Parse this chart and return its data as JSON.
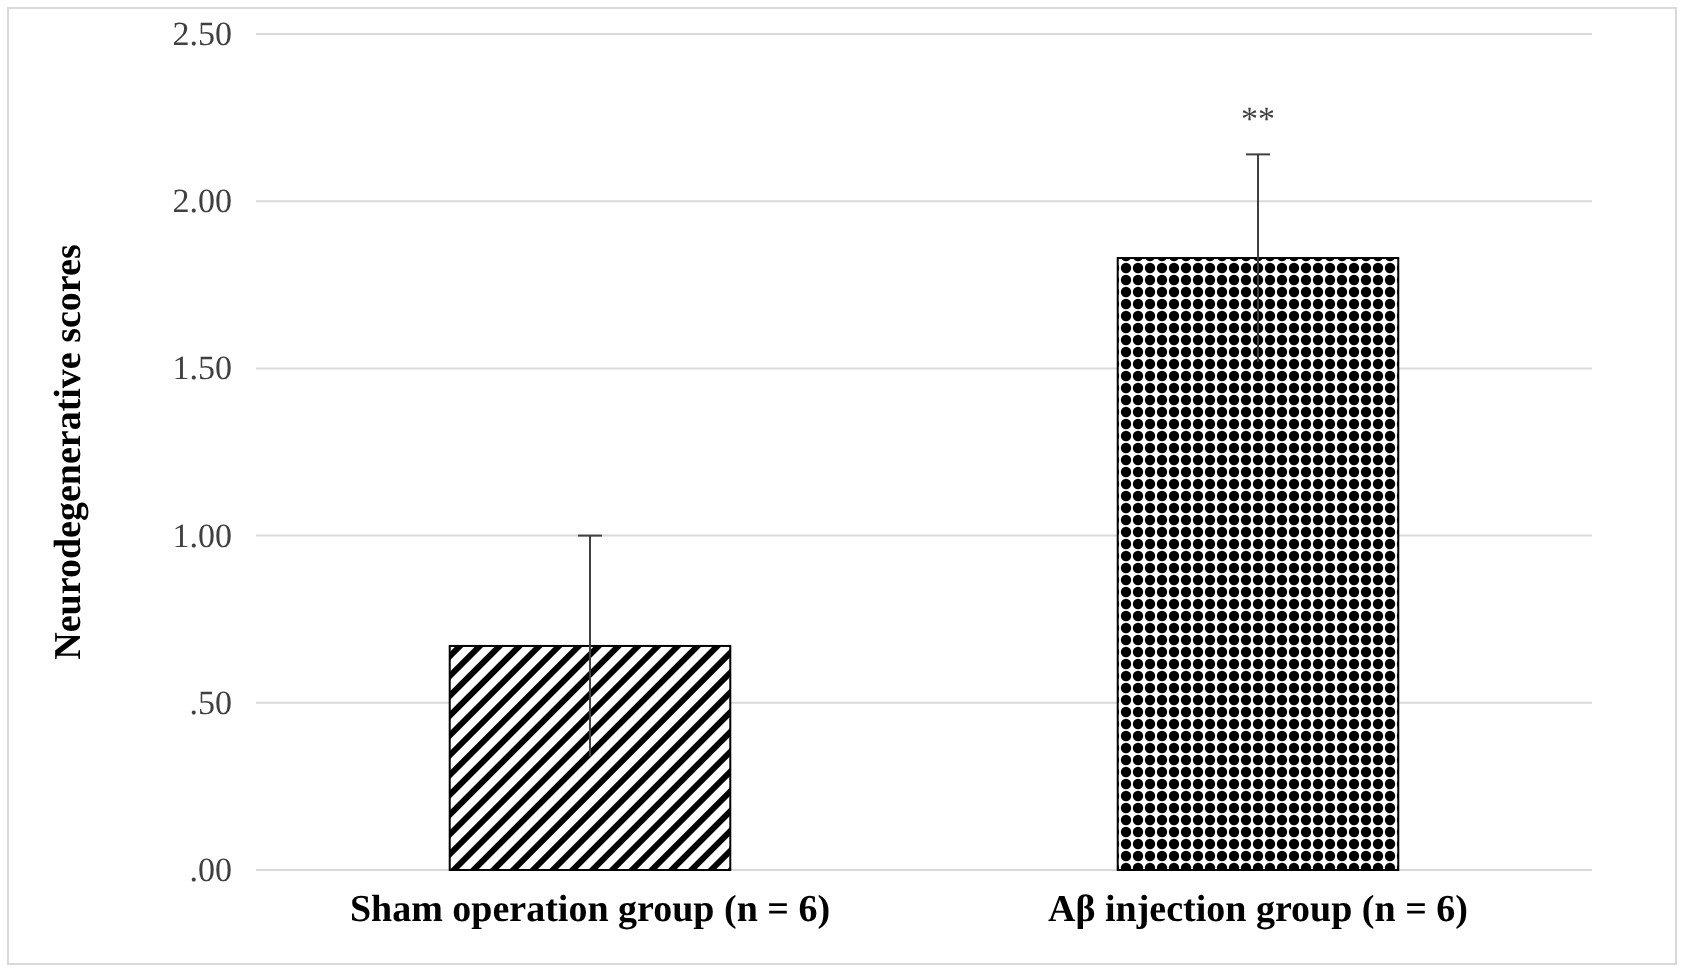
{
  "chart_data": {
    "type": "bar",
    "ylabel": "Neurodegenerative scores",
    "categories": [
      "Sham operation group (n = 6)",
      "Aβ injection group (n = 6)"
    ],
    "values": [
      0.67,
      1.83
    ],
    "errors": [
      0.33,
      0.31
    ],
    "colors": [
      "#000000",
      "#000000"
    ],
    "ylim": [
      0,
      2.5
    ],
    "yticks": [
      {
        "value": 0,
        "label": ".00"
      },
      {
        "value": 0.5,
        "label": ".50"
      },
      {
        "value": 1,
        "label": "1.00"
      },
      {
        "value": 1.5,
        "label": "1.50"
      },
      {
        "value": 2,
        "label": "2.00"
      },
      {
        "value": 2.5,
        "label": "2.50"
      }
    ],
    "grid": "y",
    "annotations": [
      "**"
    ]
  }
}
